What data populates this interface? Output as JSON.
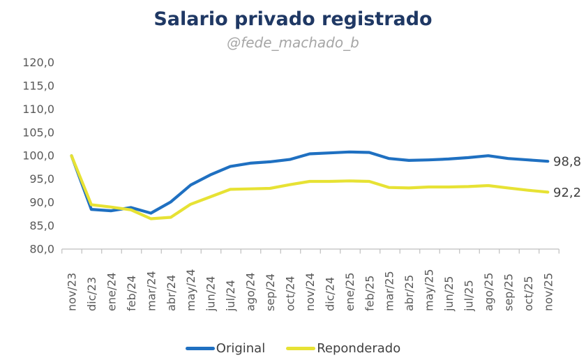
{
  "title": "Salario privado registrado",
  "subtitle": "@fede_machado_b",
  "colors": {
    "background": "#ffffff",
    "title_text": "#1f3864",
    "subtitle_text": "#a6a6a6",
    "axis_text": "#595959",
    "axis_line": "#bfbfbf",
    "end_label_text": "#404040",
    "legend_text": "#404040",
    "original": "#1f70c1",
    "reponderado": "#e7e234"
  },
  "chart_data": {
    "type": "line",
    "title": "Salario privado registrado",
    "subtitle": "@fede_machado_b",
    "categories": [
      "nov/23",
      "dic/23",
      "ene/24",
      "feb/24",
      "mar/24",
      "abr/24",
      "may/24",
      "jun/24",
      "jul/24",
      "ago/24",
      "sep/24",
      "oct/24",
      "nov/24",
      "dic/24",
      "ene/25",
      "feb/25",
      "mar/25",
      "abr/25",
      "may/25",
      "jun/25",
      "jul/25",
      "ago/25",
      "sep/25",
      "oct/25",
      "nov/25"
    ],
    "series": [
      {
        "name": "Original",
        "color_key": "original",
        "end_label": "98,8",
        "values": [
          100.0,
          88.5,
          88.2,
          88.9,
          87.7,
          90.1,
          93.7,
          95.9,
          97.7,
          98.4,
          98.7,
          99.2,
          100.4,
          100.6,
          100.8,
          100.7,
          99.4,
          99.0,
          99.1,
          99.3,
          99.6,
          100.0,
          99.4,
          99.1,
          98.8
        ]
      },
      {
        "name": "Reponderado",
        "color_key": "reponderado",
        "end_label": "92,2",
        "values": [
          100.0,
          89.5,
          89.0,
          88.4,
          86.5,
          86.8,
          89.6,
          91.2,
          92.8,
          92.9,
          93.0,
          93.8,
          94.5,
          94.5,
          94.6,
          94.5,
          93.2,
          93.1,
          93.3,
          93.3,
          93.4,
          93.6,
          93.1,
          92.6,
          92.2
        ]
      }
    ],
    "ylim": [
      80,
      120
    ],
    "ytick_step": 5,
    "ytick_labels": [
      "120,0",
      "115,0",
      "110,0",
      "105,0",
      "100,0",
      "95,0",
      "90,0",
      "85,0",
      "80,0"
    ],
    "grid": false,
    "legend_position": "bottom",
    "x_labels_rotated": true
  },
  "legend": {
    "items": [
      {
        "label": "Original",
        "color_key": "original"
      },
      {
        "label": "Reponderado",
        "color_key": "reponderado"
      }
    ]
  }
}
